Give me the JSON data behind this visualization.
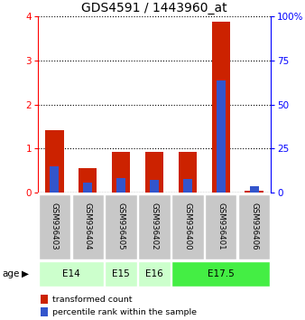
{
  "title": "GDS4591 / 1443960_at",
  "samples": [
    "GSM936403",
    "GSM936404",
    "GSM936405",
    "GSM936402",
    "GSM936400",
    "GSM936401",
    "GSM936406"
  ],
  "transformed_count": [
    1.42,
    0.55,
    0.93,
    0.92,
    0.93,
    3.87,
    0.05
  ],
  "percentile_rank": [
    15.0,
    5.5,
    8.0,
    7.0,
    7.5,
    63.5,
    3.5
  ],
  "ylim_left": [
    0,
    4
  ],
  "ylim_right": [
    0,
    100
  ],
  "yticks_left": [
    0,
    1,
    2,
    3,
    4
  ],
  "yticks_right": [
    0,
    25,
    50,
    75,
    100
  ],
  "bar_color_red": "#cc2200",
  "bar_color_blue": "#3355cc",
  "title_fontsize": 10,
  "tick_fontsize": 7.5,
  "sample_bg_color": "#c8c8c8",
  "age_e14_color": "#ccffcc",
  "age_e15_color": "#ccffcc",
  "age_e16_color": "#ccffcc",
  "age_e17_color": "#44ee44",
  "legend_red": "transformed count",
  "legend_blue": "percentile rank within the sample",
  "age_groups": [
    {
      "label": "E14",
      "start": 0,
      "end": 1,
      "color": "#ccffcc"
    },
    {
      "label": "E15",
      "start": 2,
      "end": 2,
      "color": "#ccffcc"
    },
    {
      "label": "E16",
      "start": 3,
      "end": 3,
      "color": "#ccffcc"
    },
    {
      "label": "E17.5",
      "start": 4,
      "end": 6,
      "color": "#44ee44"
    }
  ]
}
